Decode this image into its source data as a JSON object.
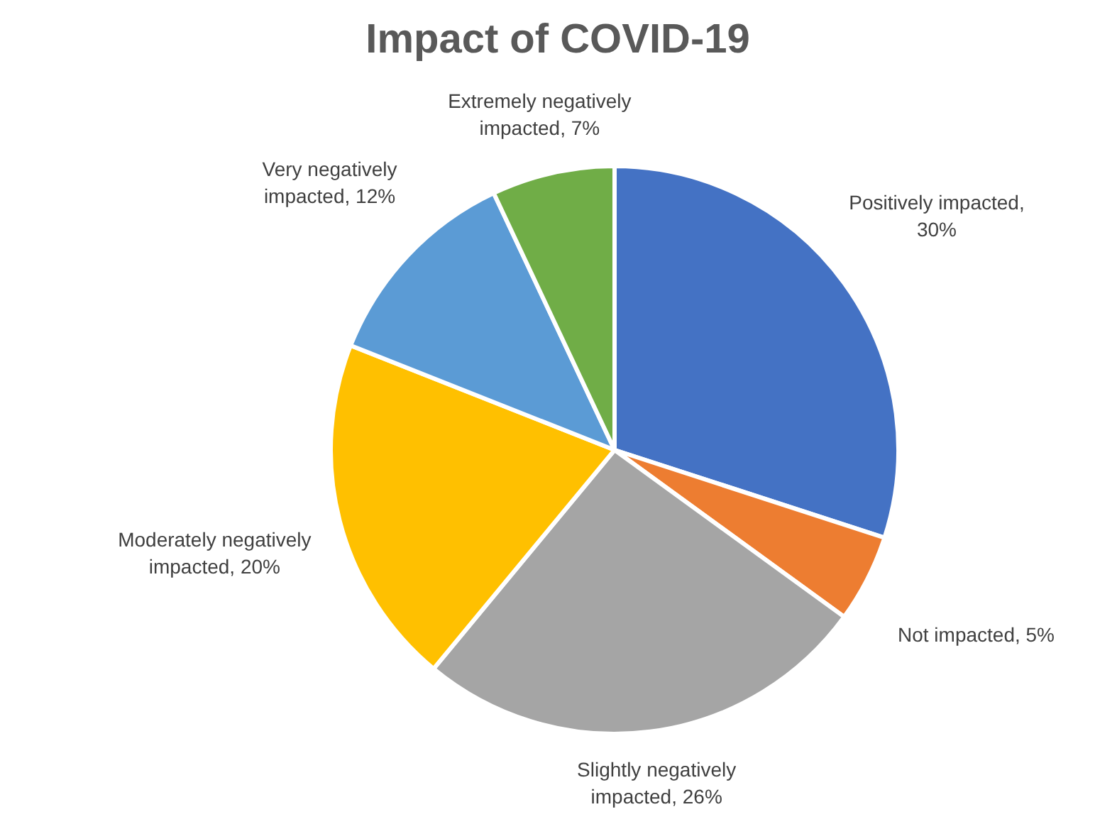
{
  "chart_data": {
    "type": "pie",
    "title": "Impact of COVID-19",
    "categories": [
      "Positively impacted",
      "Not impacted",
      "Slightly negatively impacted",
      "Moderately negatively impacted",
      "Very negatively impacted",
      "Extremely negatively impacted"
    ],
    "values": [
      30,
      5,
      26,
      20,
      12,
      7
    ],
    "value_labels": [
      ", 30%",
      ", 5%",
      ", 26%",
      ", 20%",
      ", 12%",
      ", 7%"
    ],
    "colors": [
      "#4472c4",
      "#ed7d31",
      "#a5a5a5",
      "#ffc000",
      "#5b9bd5",
      "#70ad47"
    ],
    "legend": false
  }
}
